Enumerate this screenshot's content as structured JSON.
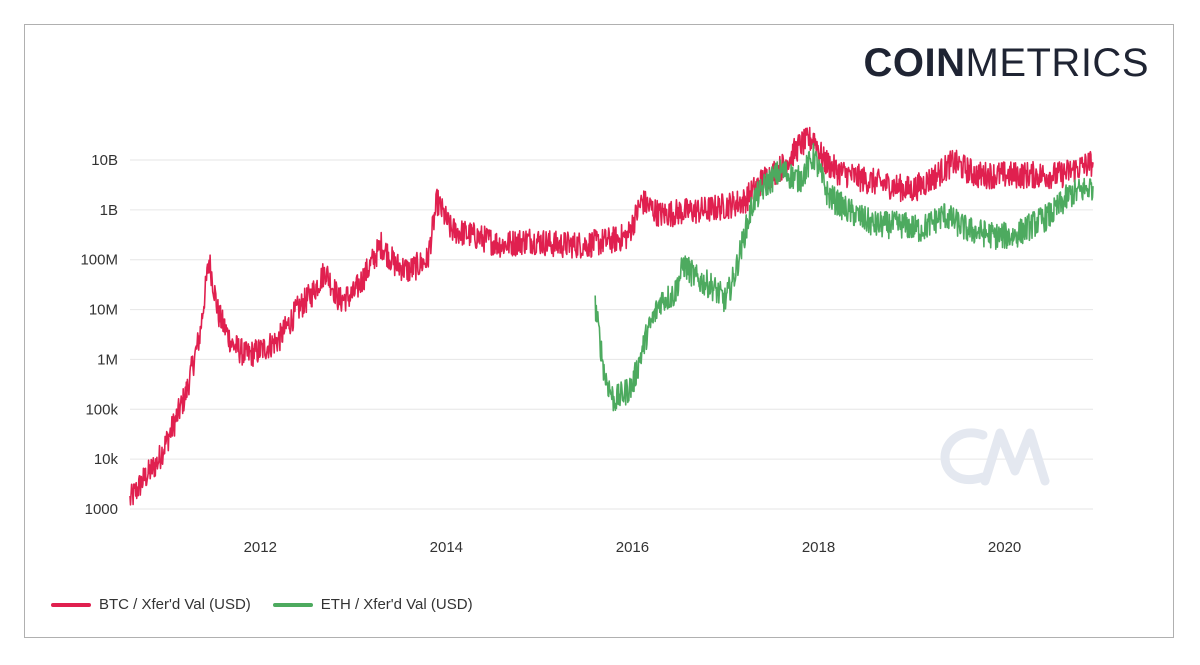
{
  "brand": {
    "bold": "COIN",
    "light": "METRICS"
  },
  "colors": {
    "btc": "#e0204f",
    "eth": "#4daa5f",
    "grid": "#e6e6e6",
    "watermark": "#e4e8f0"
  },
  "chart_data": {
    "type": "line",
    "title": "",
    "xlabel": "",
    "ylabel": "",
    "y_scale": "log",
    "ylim": [
      1000,
      40000000000
    ],
    "xlim": [
      2010.6,
      2020.95
    ],
    "x_ticks": [
      {
        "value": 2012,
        "label": "2012"
      },
      {
        "value": 2014,
        "label": "2014"
      },
      {
        "value": 2016,
        "label": "2016"
      },
      {
        "value": 2018,
        "label": "2018"
      },
      {
        "value": 2020,
        "label": "2020"
      }
    ],
    "y_ticks": [
      {
        "value": 1000,
        "label": "1000"
      },
      {
        "value": 10000,
        "label": "10k"
      },
      {
        "value": 100000,
        "label": "100k"
      },
      {
        "value": 1000000,
        "label": "1M"
      },
      {
        "value": 10000000,
        "label": "10M"
      },
      {
        "value": 100000000,
        "label": "100M"
      },
      {
        "value": 1000000000,
        "label": "1B"
      },
      {
        "value": 10000000000,
        "label": "10B"
      }
    ],
    "grid": true,
    "legend": "bottom-left",
    "series": [
      {
        "name": "BTC / Xfer'd Val (USD)",
        "color": "#e0204f",
        "x": [
          2010.6,
          2010.75,
          2010.9,
          2011.05,
          2011.2,
          2011.35,
          2011.45,
          2011.55,
          2011.7,
          2011.85,
          2012.0,
          2012.2,
          2012.4,
          2012.55,
          2012.7,
          2012.85,
          2013.0,
          2013.15,
          2013.3,
          2013.45,
          2013.6,
          2013.8,
          2013.9,
          2014.05,
          2014.3,
          2014.6,
          2014.9,
          2015.2,
          2015.5,
          2015.8,
          2015.95,
          2016.1,
          2016.3,
          2016.5,
          2016.8,
          2017.0,
          2017.2,
          2017.4,
          2017.6,
          2017.8,
          2017.95,
          2018.05,
          2018.2,
          2018.5,
          2018.8,
          2019.0,
          2019.2,
          2019.45,
          2019.7,
          2020.0,
          2020.3,
          2020.6,
          2020.95
        ],
        "values": [
          1500,
          4000,
          9000,
          40000,
          200000,
          3000000,
          100000000,
          8000000,
          2000000,
          1200000,
          1500000,
          2500000,
          10000000,
          20000000,
          60000000,
          15000000,
          20000000,
          60000000,
          200000000,
          80000000,
          60000000,
          100000000,
          1500000000,
          400000000,
          300000000,
          200000000,
          250000000,
          200000000,
          200000000,
          250000000,
          300000000,
          1500000000,
          800000000,
          900000000,
          1000000000,
          1200000000,
          1500000000,
          4000000000,
          7000000000,
          20000000000,
          28000000000,
          10000000000,
          6000000000,
          4000000000,
          3000000000,
          2500000000,
          4000000000,
          9000000000,
          5000000000,
          5000000000,
          5000000000,
          5000000000,
          9000000000
        ]
      },
      {
        "name": "ETH / Xfer'd Val (USD)",
        "color": "#4daa5f",
        "x": [
          2015.6,
          2015.7,
          2015.8,
          2015.9,
          2016.0,
          2016.15,
          2016.3,
          2016.45,
          2016.55,
          2016.7,
          2016.85,
          2017.0,
          2017.1,
          2017.2,
          2017.3,
          2017.45,
          2017.6,
          2017.8,
          2017.95,
          2018.1,
          2018.3,
          2018.6,
          2018.9,
          2019.1,
          2019.35,
          2019.6,
          2019.9,
          2020.1,
          2020.3,
          2020.5,
          2020.7,
          2020.95
        ],
        "values": [
          12000000,
          500000,
          150000,
          200000,
          300000,
          3000000,
          15000000,
          20000000,
          80000000,
          40000000,
          30000000,
          15000000,
          50000000,
          300000000,
          1500000000,
          3500000000,
          6000000000,
          4000000000,
          12000000000,
          2000000000,
          1000000000,
          500000000,
          500000000,
          400000000,
          800000000,
          400000000,
          300000000,
          300000000,
          500000000,
          800000000,
          2000000000,
          3000000000
        ]
      }
    ]
  }
}
